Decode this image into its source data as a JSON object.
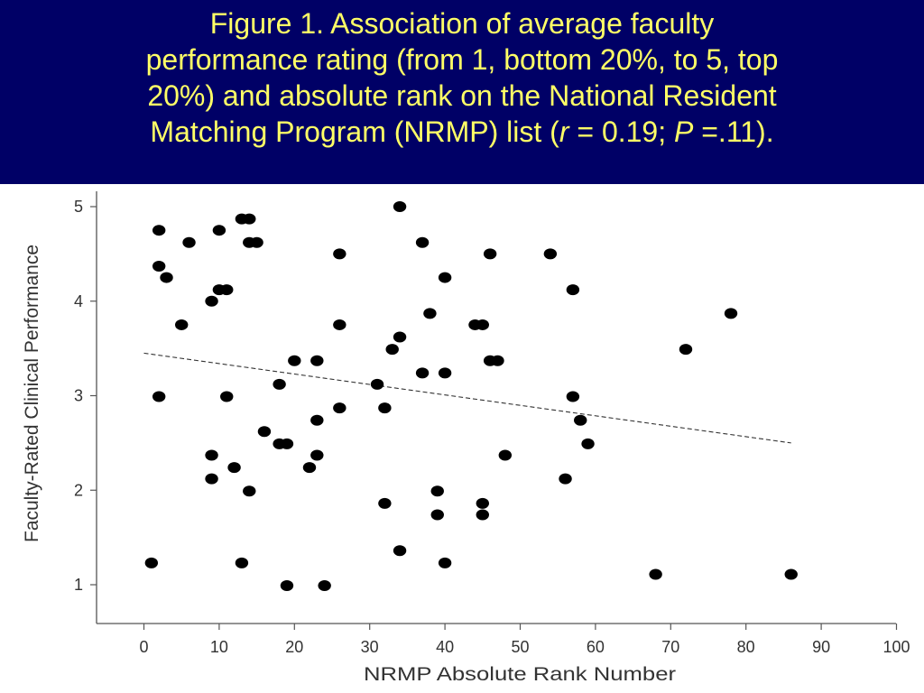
{
  "slide": {
    "background": "#000066",
    "title_color": "#ffff66",
    "title": {
      "line1": "Figure 1. Association of average faculty",
      "line2": "performance rating (from 1, bottom 20%, to 5, top",
      "line3": "20%) and absolute rank on the National Resident",
      "line4_pre": "Matching Program (NRMP) list (",
      "r_var": "r",
      "r_eq": " = 0.19; ",
      "p_var": "P",
      "p_eq": " =.11)."
    }
  },
  "chart_data": {
    "type": "scatter",
    "title": "",
    "xlabel": "NRMP Absolute Rank Number",
    "ylabel": "Faculty-Rated Clinical Performance",
    "xlim": [
      -6,
      100
    ],
    "ylim": [
      0.6,
      5.12
    ],
    "xticks": [
      0,
      10,
      20,
      30,
      40,
      50,
      60,
      70,
      80,
      90,
      100
    ],
    "yticks": [
      1,
      2,
      3,
      4,
      5
    ],
    "grid": false,
    "point_color": "#000000",
    "trendline": {
      "x": [
        0,
        86
      ],
      "y": [
        3.45,
        2.5
      ],
      "style": "dashed"
    },
    "points": [
      [
        1,
        1.23
      ],
      [
        2,
        4.75
      ],
      [
        2,
        4.37
      ],
      [
        2,
        2.99
      ],
      [
        3,
        4.25
      ],
      [
        5,
        3.75
      ],
      [
        6,
        4.62
      ],
      [
        9,
        4.0
      ],
      [
        9,
        2.37
      ],
      [
        9,
        2.12
      ],
      [
        10,
        4.75
      ],
      [
        10,
        4.12
      ],
      [
        11,
        4.12
      ],
      [
        11,
        2.99
      ],
      [
        12,
        2.24
      ],
      [
        13,
        4.87
      ],
      [
        13,
        1.23
      ],
      [
        14,
        4.87
      ],
      [
        14,
        4.62
      ],
      [
        14,
        1.99
      ],
      [
        15,
        4.62
      ],
      [
        16,
        2.62
      ],
      [
        18,
        3.12
      ],
      [
        18,
        2.49
      ],
      [
        19,
        2.49
      ],
      [
        19,
        0.99
      ],
      [
        20,
        3.37
      ],
      [
        22,
        2.24
      ],
      [
        23,
        3.37
      ],
      [
        23,
        2.74
      ],
      [
        23,
        2.37
      ],
      [
        24,
        0.99
      ],
      [
        26,
        4.5
      ],
      [
        26,
        3.75
      ],
      [
        26,
        2.87
      ],
      [
        31,
        3.12
      ],
      [
        32,
        2.87
      ],
      [
        32,
        1.86
      ],
      [
        33,
        3.49
      ],
      [
        34,
        5.0
      ],
      [
        34,
        3.62
      ],
      [
        34,
        1.36
      ],
      [
        37,
        4.62
      ],
      [
        37,
        3.24
      ],
      [
        38,
        3.87
      ],
      [
        39,
        1.99
      ],
      [
        39,
        1.74
      ],
      [
        40,
        4.25
      ],
      [
        40,
        3.24
      ],
      [
        40,
        1.23
      ],
      [
        44,
        3.75
      ],
      [
        45,
        3.75
      ],
      [
        45,
        1.86
      ],
      [
        45,
        1.74
      ],
      [
        46,
        4.5
      ],
      [
        46,
        3.37
      ],
      [
        47,
        3.37
      ],
      [
        48,
        2.37
      ],
      [
        54,
        4.5
      ],
      [
        56,
        2.12
      ],
      [
        57,
        4.12
      ],
      [
        57,
        2.99
      ],
      [
        58,
        2.74
      ],
      [
        59,
        2.49
      ],
      [
        68,
        1.11
      ],
      [
        72,
        3.49
      ],
      [
        78,
        3.87
      ],
      [
        86,
        1.11
      ]
    ]
  }
}
